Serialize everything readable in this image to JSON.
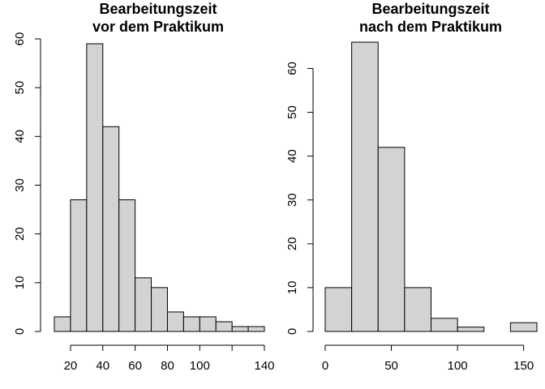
{
  "chart_data": [
    {
      "type": "bar",
      "subtype": "histogram",
      "title_lines": [
        "Bearbeitungszeit",
        "vor dem Praktikum"
      ],
      "xlabel": "",
      "ylabel": "",
      "bins": [
        {
          "x0": 10,
          "x1": 20,
          "count": 3
        },
        {
          "x0": 20,
          "x1": 30,
          "count": 27
        },
        {
          "x0": 30,
          "x1": 40,
          "count": 59
        },
        {
          "x0": 40,
          "x1": 50,
          "count": 42
        },
        {
          "x0": 50,
          "x1": 60,
          "count": 27
        },
        {
          "x0": 60,
          "x1": 70,
          "count": 11
        },
        {
          "x0": 70,
          "x1": 80,
          "count": 9
        },
        {
          "x0": 80,
          "x1": 90,
          "count": 4
        },
        {
          "x0": 90,
          "x1": 100,
          "count": 3
        },
        {
          "x0": 100,
          "x1": 110,
          "count": 3
        },
        {
          "x0": 110,
          "x1": 120,
          "count": 2
        },
        {
          "x0": 120,
          "x1": 130,
          "count": 1
        },
        {
          "x0": 130,
          "x1": 140,
          "count": 1
        }
      ],
      "xlim": [
        10,
        140
      ],
      "ylim": [
        0,
        60
      ],
      "x_ticks": [
        20,
        40,
        60,
        80,
        100,
        120,
        140
      ],
      "x_tick_labels": [
        "20",
        "40",
        "60",
        "80",
        "100",
        "",
        "140"
      ],
      "y_ticks": [
        0,
        10,
        20,
        30,
        40,
        50,
        60
      ],
      "y_tick_labels": [
        "0",
        "10",
        "20",
        "30",
        "40",
        "50",
        "60"
      ],
      "bar_color": "#d3d3d3",
      "grid": false
    },
    {
      "type": "bar",
      "subtype": "histogram",
      "title_lines": [
        "Bearbeitungszeit",
        "nach dem Praktikum"
      ],
      "xlabel": "",
      "ylabel": "",
      "bins": [
        {
          "x0": 0,
          "x1": 20,
          "count": 10
        },
        {
          "x0": 20,
          "x1": 40,
          "count": 66
        },
        {
          "x0": 40,
          "x1": 60,
          "count": 42
        },
        {
          "x0": 60,
          "x1": 80,
          "count": 10
        },
        {
          "x0": 80,
          "x1": 100,
          "count": 3
        },
        {
          "x0": 100,
          "x1": 120,
          "count": 1
        },
        {
          "x0": 120,
          "x1": 140,
          "count": 0
        },
        {
          "x0": 140,
          "x1": 160,
          "count": 2
        }
      ],
      "xlim": [
        0,
        160
      ],
      "ylim": [
        0,
        66
      ],
      "x_ticks": [
        0,
        50,
        100,
        150
      ],
      "x_tick_labels": [
        "0",
        "50",
        "100",
        "150"
      ],
      "y_ticks": [
        0,
        10,
        20,
        30,
        40,
        50,
        60
      ],
      "y_tick_labels": [
        "0",
        "10",
        "20",
        "30",
        "40",
        "50",
        "60"
      ],
      "bar_color": "#d3d3d3",
      "grid": false
    }
  ]
}
